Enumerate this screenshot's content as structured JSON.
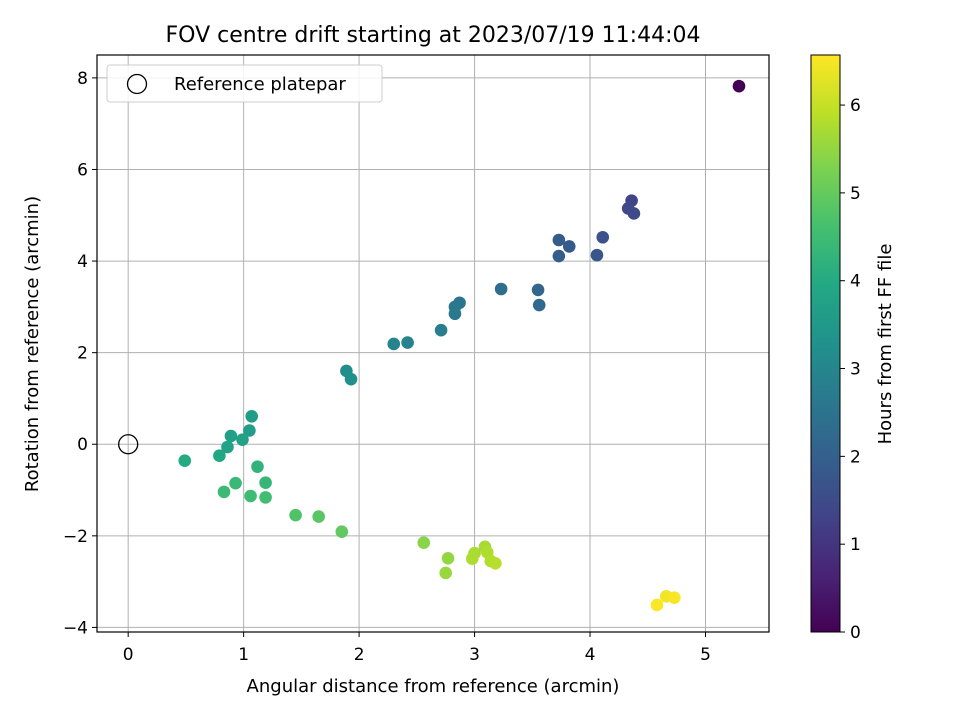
{
  "chart_data": {
    "type": "scatter",
    "title": "FOV centre drift starting at 2023/07/19 11:44:04",
    "xlabel": "Angular distance from reference (arcmin)",
    "ylabel": "Rotation from reference (arcmin)",
    "xlim": [
      -0.27,
      5.55
    ],
    "ylim": [
      -4.1,
      8.5
    ],
    "xticks": [
      0,
      1,
      2,
      3,
      4,
      5
    ],
    "xtick_labels": [
      "0",
      "1",
      "2",
      "3",
      "4",
      "5"
    ],
    "yticks": [
      -4,
      -2,
      0,
      2,
      4,
      6,
      8
    ],
    "ytick_labels": [
      "−4",
      "−2",
      "0",
      "2",
      "4",
      "6",
      "8"
    ],
    "grid": true,
    "legend": {
      "position": "top-left",
      "entries": [
        "Reference platepar"
      ]
    },
    "reference_point": {
      "x": 0,
      "y": 0
    },
    "colorbar": {
      "label": "Hours from first FF file",
      "range": [
        0,
        6.57
      ],
      "ticks": [
        0,
        1,
        2,
        3,
        4,
        5,
        6
      ],
      "tick_labels": [
        "0",
        "1",
        "2",
        "3",
        "4",
        "5",
        "6"
      ],
      "colormap": "viridis"
    },
    "points": [
      {
        "x": 5.29,
        "y": 7.82,
        "c": 0.0
      },
      {
        "x": 4.36,
        "y": 5.32,
        "c": 1.35
      },
      {
        "x": 4.33,
        "y": 5.15,
        "c": 1.4
      },
      {
        "x": 4.38,
        "y": 5.04,
        "c": 1.45
      },
      {
        "x": 4.11,
        "y": 4.52,
        "c": 1.65
      },
      {
        "x": 4.06,
        "y": 4.13,
        "c": 1.75
      },
      {
        "x": 3.82,
        "y": 4.32,
        "c": 1.85
      },
      {
        "x": 3.73,
        "y": 4.46,
        "c": 1.9
      },
      {
        "x": 3.73,
        "y": 4.11,
        "c": 1.95
      },
      {
        "x": 3.55,
        "y": 3.37,
        "c": 2.15
      },
      {
        "x": 3.56,
        "y": 3.04,
        "c": 2.2
      },
      {
        "x": 3.23,
        "y": 3.39,
        "c": 2.35
      },
      {
        "x": 2.87,
        "y": 3.09,
        "c": 2.55
      },
      {
        "x": 2.83,
        "y": 3.0,
        "c": 2.6
      },
      {
        "x": 2.83,
        "y": 2.85,
        "c": 2.65
      },
      {
        "x": 2.71,
        "y": 2.49,
        "c": 2.75
      },
      {
        "x": 2.42,
        "y": 2.22,
        "c": 2.9
      },
      {
        "x": 2.3,
        "y": 2.19,
        "c": 2.95
      },
      {
        "x": 1.89,
        "y": 1.6,
        "c": 3.2
      },
      {
        "x": 1.93,
        "y": 1.42,
        "c": 3.25
      },
      {
        "x": 1.07,
        "y": 0.61,
        "c": 3.6
      },
      {
        "x": 1.05,
        "y": 0.3,
        "c": 3.65
      },
      {
        "x": 0.89,
        "y": 0.18,
        "c": 3.7
      },
      {
        "x": 0.99,
        "y": 0.1,
        "c": 3.75
      },
      {
        "x": 0.86,
        "y": -0.06,
        "c": 3.8
      },
      {
        "x": 0.79,
        "y": -0.25,
        "c": 3.9
      },
      {
        "x": 0.49,
        "y": -0.36,
        "c": 4.0
      },
      {
        "x": 1.12,
        "y": -0.49,
        "c": 4.25
      },
      {
        "x": 1.19,
        "y": -0.84,
        "c": 4.35
      },
      {
        "x": 0.93,
        "y": -0.85,
        "c": 4.4
      },
      {
        "x": 0.83,
        "y": -1.04,
        "c": 4.45
      },
      {
        "x": 1.06,
        "y": -1.13,
        "c": 4.5
      },
      {
        "x": 1.19,
        "y": -1.16,
        "c": 4.55
      },
      {
        "x": 1.45,
        "y": -1.55,
        "c": 4.75
      },
      {
        "x": 1.65,
        "y": -1.58,
        "c": 4.85
      },
      {
        "x": 1.85,
        "y": -1.91,
        "c": 4.95
      },
      {
        "x": 2.56,
        "y": -2.15,
        "c": 5.4
      },
      {
        "x": 2.77,
        "y": -2.49,
        "c": 5.5
      },
      {
        "x": 2.75,
        "y": -2.81,
        "c": 5.55
      },
      {
        "x": 3.09,
        "y": -2.24,
        "c": 5.7
      },
      {
        "x": 3.0,
        "y": -2.38,
        "c": 5.72
      },
      {
        "x": 2.98,
        "y": -2.5,
        "c": 5.75
      },
      {
        "x": 3.11,
        "y": -2.36,
        "c": 5.78
      },
      {
        "x": 3.14,
        "y": -2.55,
        "c": 5.8
      },
      {
        "x": 3.18,
        "y": -2.6,
        "c": 5.85
      },
      {
        "x": 4.66,
        "y": -3.32,
        "c": 6.45
      },
      {
        "x": 4.73,
        "y": -3.35,
        "c": 6.5
      },
      {
        "x": 4.58,
        "y": -3.51,
        "c": 6.55
      }
    ]
  }
}
